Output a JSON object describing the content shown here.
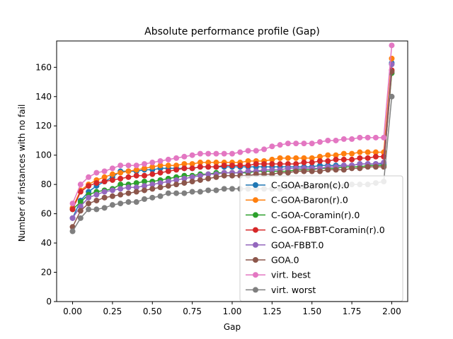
{
  "chart_data": {
    "type": "line",
    "title": "Absolute performance profile (Gap)",
    "xlabel": "Gap",
    "ylabel": "Number of instances with no fail",
    "xlim": [
      -0.1,
      2.1
    ],
    "ylim": [
      0,
      178
    ],
    "xticks": [
      0.0,
      0.25,
      0.5,
      0.75,
      1.0,
      1.25,
      1.5,
      1.75,
      2.0
    ],
    "xtick_labels": [
      "0.00",
      "0.25",
      "0.50",
      "0.75",
      "1.00",
      "1.25",
      "1.50",
      "1.75",
      "2.00"
    ],
    "yticks": [
      0,
      20,
      40,
      60,
      80,
      100,
      120,
      140,
      160
    ],
    "ytick_labels": [
      "0",
      "20",
      "40",
      "60",
      "80",
      "100",
      "120",
      "140",
      "160"
    ],
    "grid": false,
    "legend_position": "lower-right",
    "x": [
      0.0,
      0.05,
      0.1,
      0.15,
      0.2,
      0.25,
      0.3,
      0.35,
      0.4,
      0.45,
      0.5,
      0.55,
      0.6,
      0.65,
      0.7,
      0.75,
      0.8,
      0.85,
      0.9,
      0.95,
      1.0,
      1.05,
      1.1,
      1.15,
      1.2,
      1.25,
      1.3,
      1.35,
      1.4,
      1.45,
      1.5,
      1.55,
      1.6,
      1.65,
      1.7,
      1.75,
      1.8,
      1.85,
      1.9,
      1.95,
      2.0
    ],
    "series": [
      {
        "name": "C-GOA-Baron(c).0",
        "color": "#1f77b4",
        "values": [
          57,
          69,
          75,
          79,
          82,
          85,
          89,
          89,
          89,
          90,
          90,
          91,
          91,
          91,
          91,
          91,
          92,
          92,
          92,
          92,
          92,
          92,
          92,
          92,
          92,
          92,
          92,
          92,
          92,
          92,
          92,
          93,
          93,
          93,
          93,
          93,
          94,
          94,
          94,
          94,
          163
        ]
      },
      {
        "name": "C-GOA-Baron(r).0",
        "color": "#ff7f0e",
        "values": [
          64,
          76,
          80,
          83,
          85,
          87,
          88,
          89,
          90,
          91,
          92,
          93,
          93,
          93,
          94,
          94,
          95,
          95,
          95,
          95,
          95,
          95,
          96,
          96,
          96,
          97,
          98,
          98,
          98,
          98,
          98,
          99,
          100,
          100,
          101,
          101,
          102,
          102,
          102,
          102,
          166
        ]
      },
      {
        "name": "C-GOA-Coramin(r).0",
        "color": "#2ca02c",
        "values": [
          63,
          68,
          73,
          75,
          76,
          77,
          80,
          80,
          81,
          82,
          82,
          83,
          84,
          85,
          86,
          86,
          87,
          87,
          88,
          88,
          88,
          88,
          88,
          89,
          89,
          89,
          89,
          89,
          90,
          90,
          90,
          91,
          91,
          91,
          92,
          92,
          92,
          93,
          93,
          93,
          156
        ]
      },
      {
        "name": "C-GOA-FBBT-Coramin(r).0",
        "color": "#d62728",
        "values": [
          63,
          75,
          79,
          81,
          82,
          83,
          84,
          85,
          86,
          86,
          87,
          88,
          89,
          90,
          91,
          91,
          92,
          92,
          92,
          93,
          93,
          93,
          93,
          94,
          94,
          94,
          94,
          94,
          94,
          95,
          95,
          96,
          96,
          97,
          97,
          97,
          98,
          98,
          99,
          99,
          158
        ]
      },
      {
        "name": "GOA-FBBT.0",
        "color": "#9467bd",
        "values": [
          57,
          65,
          71,
          73,
          75,
          76,
          77,
          78,
          78,
          79,
          80,
          81,
          82,
          83,
          84,
          85,
          86,
          87,
          87,
          88,
          88,
          88,
          89,
          89,
          90,
          90,
          90,
          91,
          91,
          91,
          91,
          91,
          92,
          92,
          93,
          93,
          94,
          94,
          94,
          95,
          162
        ]
      },
      {
        "name": "GOA.0",
        "color": "#8c564b",
        "values": [
          51,
          62,
          67,
          69,
          71,
          72,
          73,
          74,
          75,
          76,
          77,
          78,
          79,
          80,
          81,
          82,
          83,
          84,
          85,
          86,
          86,
          86,
          86,
          87,
          87,
          87,
          88,
          88,
          89,
          89,
          89,
          89,
          90,
          90,
          90,
          91,
          91,
          92,
          92,
          92,
          157
        ]
      },
      {
        "name": "virt. best",
        "color": "#e377c2",
        "values": [
          67,
          80,
          85,
          88,
          89,
          91,
          93,
          93,
          93,
          94,
          95,
          96,
          97,
          98,
          99,
          100,
          101,
          101,
          101,
          101,
          101,
          102,
          103,
          103,
          104,
          106,
          107,
          108,
          108,
          108,
          108,
          109,
          110,
          110,
          111,
          111,
          112,
          112,
          112,
          112,
          175
        ]
      },
      {
        "name": "virt. worst",
        "color": "#7f7f7f",
        "values": [
          48,
          57,
          63,
          63,
          64,
          66,
          67,
          68,
          68,
          70,
          71,
          72,
          74,
          74,
          74,
          75,
          75,
          76,
          76,
          77,
          77,
          77,
          77,
          77,
          77,
          77,
          77,
          78,
          78,
          78,
          78,
          78,
          79,
          79,
          79,
          80,
          80,
          80,
          81,
          82,
          140
        ]
      }
    ]
  }
}
